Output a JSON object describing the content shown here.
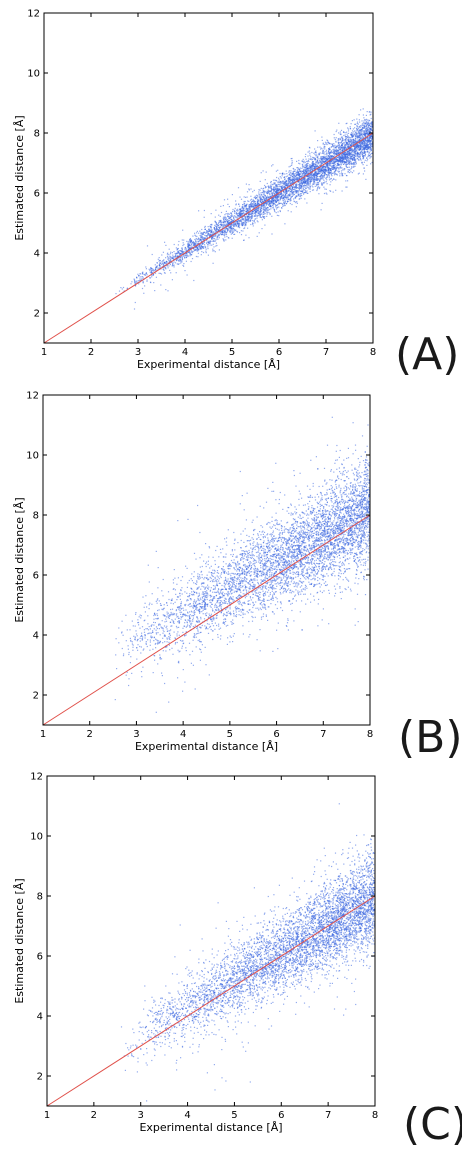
{
  "chart_data": [
    {
      "type": "scatter",
      "panel_label": "(A)",
      "xlabel": "Experimental distance [Å]",
      "ylabel": "Estimated distance [Å]",
      "xlim": [
        1,
        8
      ],
      "ylim": [
        1,
        12
      ],
      "xticks": [
        1,
        2,
        3,
        4,
        5,
        6,
        7,
        8
      ],
      "yticks": [
        2,
        4,
        6,
        8,
        10,
        12
      ],
      "series": [
        {
          "color": "#3a66e0",
          "x_range": [
            2.5,
            8.0
          ],
          "trend": {
            "slope": 0.97,
            "intercept": 0.2
          },
          "spread_sd": [
            0.08,
            0.35
          ],
          "outlier_sd": 0.45
        }
      ],
      "reference_line": {
        "x": [
          1,
          8
        ],
        "y": [
          1,
          8
        ],
        "color": "#e0504a"
      }
    },
    {
      "type": "scatter",
      "panel_label": "(B)",
      "xlabel": "Experimental distance [Å]",
      "ylabel": "Estimated distance [Å]",
      "xlim": [
        1,
        8
      ],
      "ylim": [
        1,
        12
      ],
      "xticks": [
        1,
        2,
        3,
        4,
        5,
        6,
        7,
        8
      ],
      "yticks": [
        2,
        4,
        6,
        8,
        10,
        12
      ],
      "series": [
        {
          "color": "#3a66e0",
          "x_range": [
            2.5,
            8.0
          ],
          "trend": {
            "slope": 0.85,
            "intercept": 1.35
          },
          "spread_sd": [
            0.5,
            0.85
          ],
          "outlier_sd": 1.2
        }
      ],
      "reference_line": {
        "x": [
          1,
          8
        ],
        "y": [
          1,
          8
        ],
        "color": "#e0504a"
      }
    },
    {
      "type": "scatter",
      "panel_label": "(C)",
      "xlabel": "Experimental distance [Å]",
      "ylabel": "Estimated distance [Å]",
      "xlim": [
        1,
        8
      ],
      "ylim": [
        1,
        12
      ],
      "xticks": [
        1,
        2,
        3,
        4,
        5,
        6,
        7,
        8
      ],
      "yticks": [
        2,
        4,
        6,
        8,
        10,
        12
      ],
      "series": [
        {
          "color": "#3a66e0",
          "x_range": [
            2.5,
            8.0
          ],
          "trend": {
            "slope": 0.92,
            "intercept": 0.6
          },
          "spread_sd": [
            0.35,
            0.75
          ],
          "outlier_sd": 1.1
        }
      ],
      "reference_line": {
        "x": [
          1,
          8
        ],
        "y": [
          1,
          8
        ],
        "color": "#e0504a"
      }
    }
  ]
}
